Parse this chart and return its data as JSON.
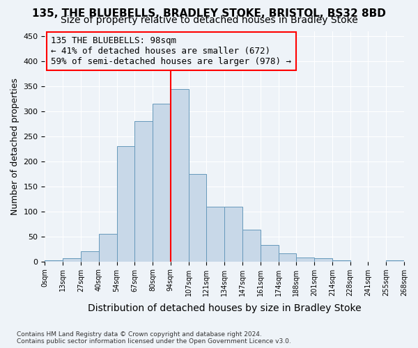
{
  "title_line1": "135, THE BLUEBELLS, BRADLEY STOKE, BRISTOL, BS32 8BD",
  "title_line2": "Size of property relative to detached houses in Bradley Stoke",
  "xlabel": "Distribution of detached houses by size in Bradley Stoke",
  "ylabel": "Number of detached properties",
  "footnote": "Contains HM Land Registry data © Crown copyright and database right 2024.\nContains public sector information licensed under the Open Government Licence v3.0.",
  "bin_labels": [
    "0sqm",
    "13sqm",
    "27sqm",
    "40sqm",
    "54sqm",
    "67sqm",
    "80sqm",
    "94sqm",
    "107sqm",
    "121sqm",
    "134sqm",
    "147sqm",
    "161sqm",
    "174sqm",
    "188sqm",
    "201sqm",
    "214sqm",
    "228sqm",
    "241sqm",
    "255sqm",
    "268sqm"
  ],
  "bar_values": [
    2,
    6,
    20,
    55,
    230,
    280,
    315,
    345,
    175,
    110,
    110,
    63,
    33,
    16,
    8,
    6,
    2,
    0,
    0,
    2
  ],
  "bar_color": "#c8d8e8",
  "bar_edge_color": "#6699bb",
  "vline_x": 7,
  "vline_color": "red",
  "annotation_text": "135 THE BLUEBELLS: 98sqm\n← 41% of detached houses are smaller (672)\n59% of semi-detached houses are larger (978) →",
  "annotation_box_edge": "red",
  "annotation_fontsize": 9,
  "ylim": [
    0,
    460
  ],
  "yticks": [
    0,
    50,
    100,
    150,
    200,
    250,
    300,
    350,
    400,
    450
  ],
  "background_color": "#eef3f8",
  "grid_color": "#ffffff",
  "title_fontsize": 11,
  "subtitle_fontsize": 10,
  "xlabel_fontsize": 10,
  "ylabel_fontsize": 9
}
